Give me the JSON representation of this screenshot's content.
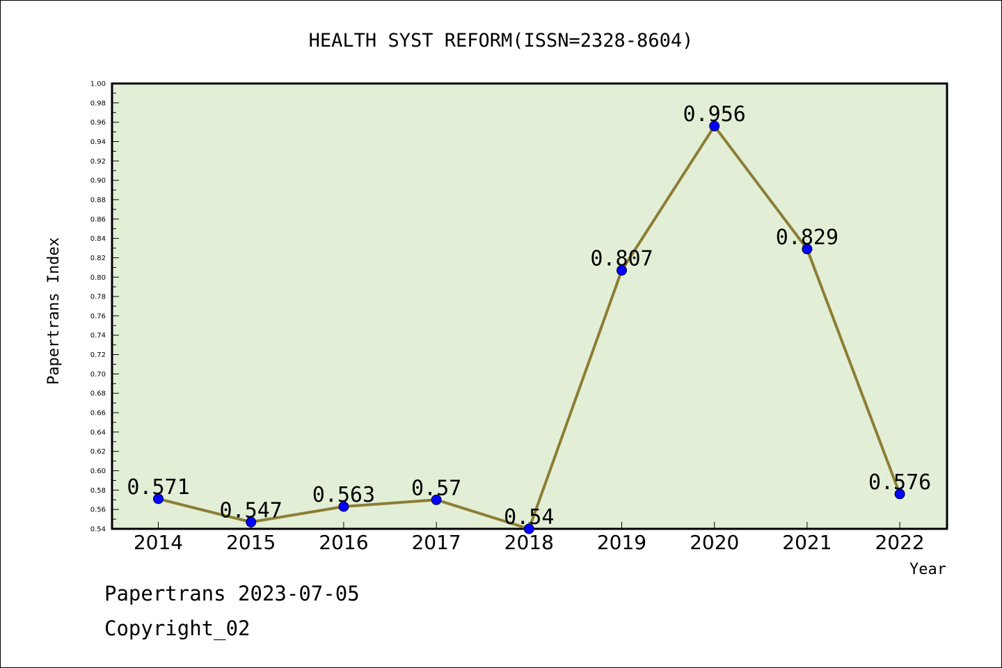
{
  "chart_data": {
    "type": "line",
    "title": "HEALTH SYST REFORM(ISSN=2328-8604)",
    "xlabel": "Year",
    "ylabel": "Papertrans Index",
    "categories": [
      "2014",
      "2015",
      "2016",
      "2017",
      "2018",
      "2019",
      "2020",
      "2021",
      "2022"
    ],
    "series": [
      {
        "values": [
          0.571,
          0.547,
          0.563,
          0.57,
          0.54,
          0.807,
          0.956,
          0.829,
          0.576
        ],
        "data_labels": [
          "0.571",
          "0.547",
          "0.563",
          "0.57",
          "0.54",
          "0.807",
          "0.956",
          "0.829",
          "0.576"
        ]
      }
    ],
    "ylim": [
      0.54,
      1.0
    ],
    "ytick_step": 0.02,
    "ytick_labels": [
      "0.54",
      "0.56",
      "0.58",
      "0.60",
      "0.62",
      "0.64",
      "0.66",
      "0.68",
      "0.70",
      "0.72",
      "0.74",
      "0.76",
      "0.78",
      "0.80",
      "0.82",
      "0.84",
      "0.86",
      "0.88",
      "0.90",
      "0.92",
      "0.94",
      "0.96",
      "0.98",
      "1.00"
    ],
    "grid": false,
    "legend": "none",
    "colors": {
      "plot_background": "#e2efd6",
      "line": "#8c7d35",
      "marker": "#0000ff",
      "axes": "#000000"
    }
  },
  "footer": {
    "line1": "Papertrans 2023-07-05",
    "line2": "Copyright_02"
  }
}
